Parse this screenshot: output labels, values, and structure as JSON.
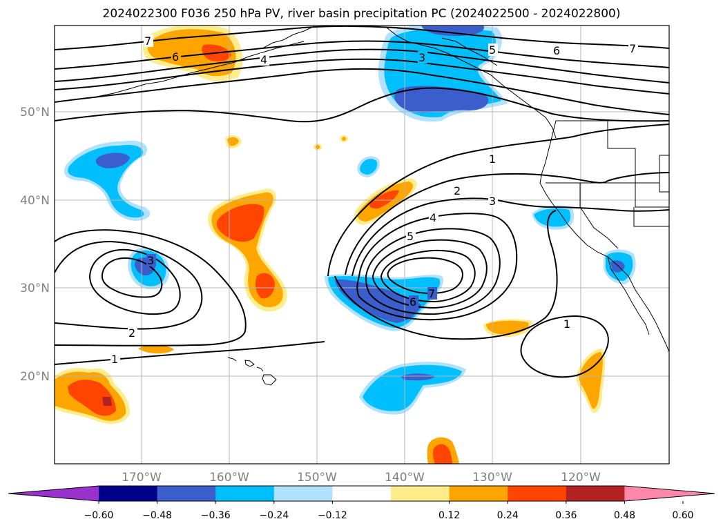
{
  "title": "2024022300 F036 250 hPa PV, river basin precipitation PC (2024022500 - 2024022800)",
  "lat_labels": [
    "50°N",
    "40°N",
    "30°N",
    "20°N"
  ],
  "lon_labels": [
    "170°W",
    "160°W",
    "150°W",
    "140°W",
    "130°W",
    "120°W"
  ],
  "pv_contour_labels": [
    "7",
    "6",
    "4",
    "3",
    "5",
    "6",
    "7",
    "1",
    "2",
    "3",
    "4",
    "5",
    "3",
    "2",
    "1",
    "7",
    "6",
    "1"
  ],
  "colorbar": {
    "ticks": [
      "−0.60",
      "−0.48",
      "−0.36",
      "−0.24",
      "−0.12",
      "0.12",
      "0.24",
      "0.36",
      "0.48",
      "0.60"
    ],
    "colors": [
      "#9932cc",
      "#00008b",
      "#3a5fcd",
      "#00bfff",
      "#b0e2ff",
      "#ffffff",
      "#ffec8b",
      "#ffa500",
      "#ff4500",
      "#b22222",
      "#ff88aa"
    ]
  }
}
